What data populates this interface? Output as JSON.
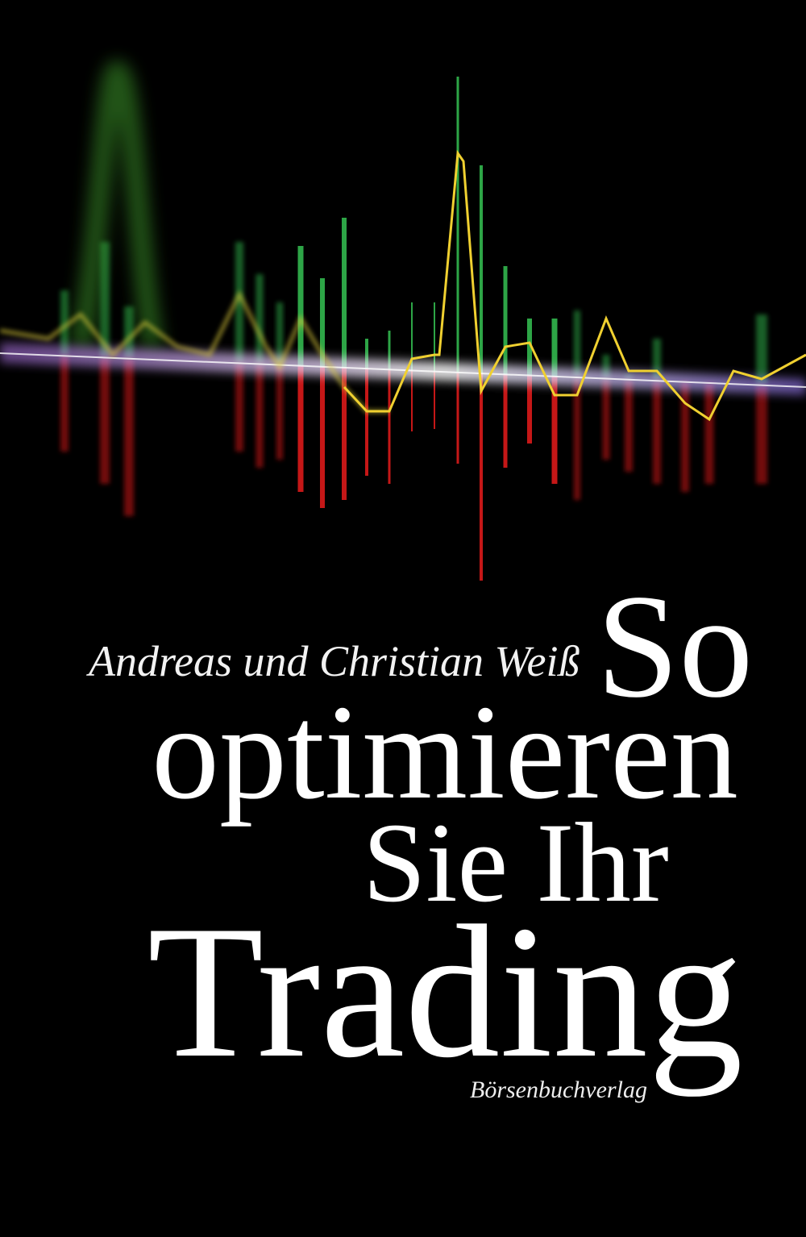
{
  "cover": {
    "authors": "Andreas und Christian Weiß",
    "title_lines": [
      "So",
      "optimieren",
      "Sie Ihr",
      "Trading"
    ],
    "publisher": "Börsenbuchverlag"
  },
  "colors": {
    "background": "#000000",
    "text": "#ffffff",
    "up_bars": "#2fae4a",
    "down_bars": "#d01818",
    "price_line": "#e8d23a",
    "baseline_glow": "#b9a8ff"
  }
}
